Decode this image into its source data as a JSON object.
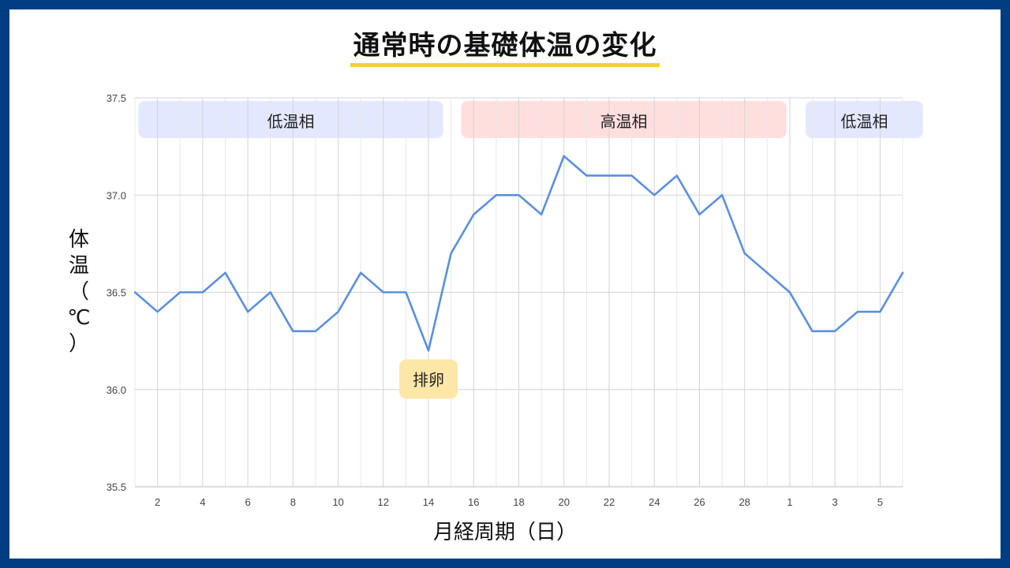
{
  "title": "通常時の基礎体温の変化",
  "chart_data": {
    "type": "line",
    "title": "通常時の基礎体温の変化",
    "ylabel": "体温（℃）",
    "xlabel": "月経周期（日）",
    "ylim": [
      35.5,
      37.5
    ],
    "yticks": [
      "35.5",
      "36.0",
      "36.5",
      "37.0",
      "37.5"
    ],
    "x_ticks": [
      "2",
      "4",
      "6",
      "8",
      "10",
      "12",
      "14",
      "16",
      "18",
      "20",
      "22",
      "24",
      "26",
      "28",
      "1",
      "3",
      "5"
    ],
    "grid": true,
    "series": [
      {
        "color": "#5a8fe0",
        "x": [
          "1",
          "2",
          "3",
          "4",
          "5",
          "6",
          "7",
          "8",
          "9",
          "10",
          "11",
          "12",
          "13",
          "14",
          "15",
          "16",
          "17",
          "18",
          "19",
          "20",
          "21",
          "22",
          "23",
          "24",
          "25",
          "26",
          "27",
          "28",
          "29",
          "1",
          "2",
          "3",
          "4",
          "5",
          "6"
        ],
        "values": [
          36.5,
          36.4,
          36.5,
          36.5,
          36.6,
          36.4,
          36.5,
          36.3,
          36.3,
          36.4,
          36.6,
          36.5,
          36.5,
          36.2,
          36.7,
          36.9,
          37.0,
          37.0,
          36.9,
          37.2,
          37.1,
          37.1,
          37.1,
          37.0,
          37.1,
          36.9,
          37.0,
          36.7,
          36.6,
          36.5,
          36.3,
          36.3,
          36.4,
          36.4,
          36.6
        ]
      }
    ],
    "phases": [
      {
        "label": "低温相",
        "color": "#e3e8ff",
        "start": 0.15,
        "end": 13.65
      },
      {
        "label": "高温相",
        "color": "#ffdede",
        "start": 14.45,
        "end": 28.85
      },
      {
        "label": "低温相",
        "color": "#e3e8ff",
        "start": 29.7,
        "end": 34.9
      }
    ],
    "annotations": [
      {
        "label": "排卵",
        "index": 13,
        "color": "#fde7a8"
      }
    ]
  }
}
